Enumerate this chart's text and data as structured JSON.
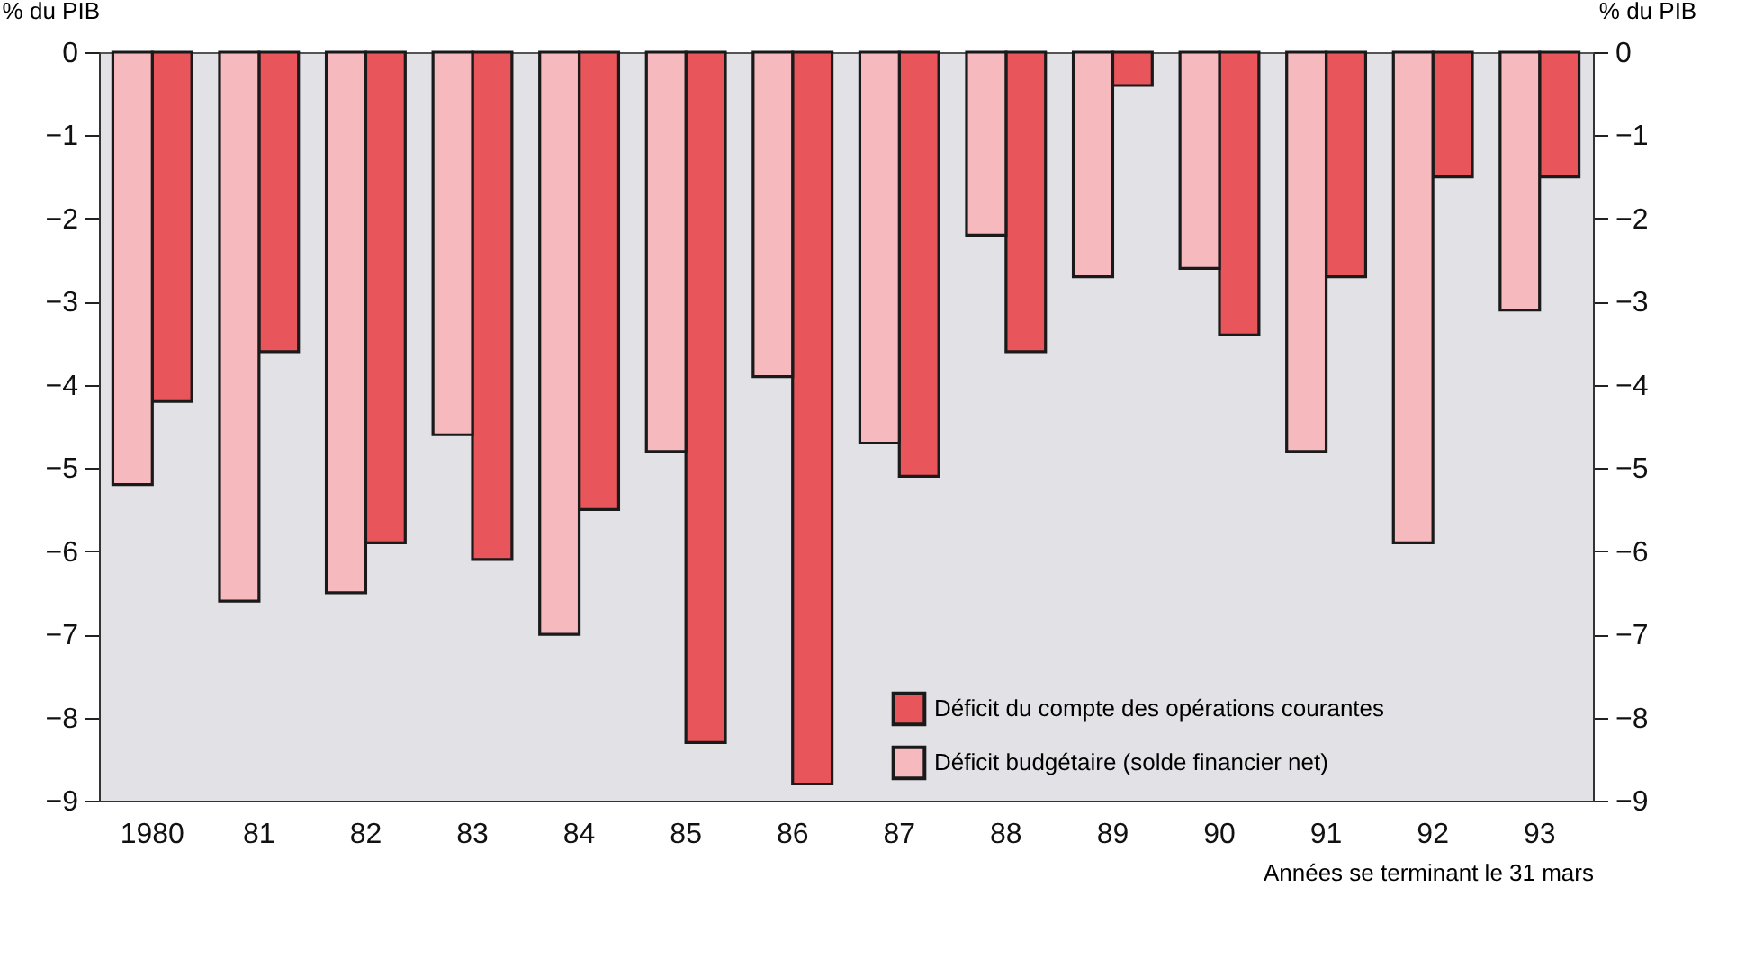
{
  "chart_data": {
    "type": "bar",
    "xlabel": "Années se terminant le 31 mars",
    "ylabel": "% du PIB",
    "y2label": "% du PIB",
    "categories": [
      "1980",
      "81",
      "82",
      "83",
      "84",
      "85",
      "86",
      "87",
      "88",
      "89",
      "90",
      "91",
      "92",
      "93"
    ],
    "series": [
      {
        "name": "Déficit du compte des opérations courantes",
        "color": "#e8555a",
        "values": [
          -4.2,
          -3.6,
          -5.9,
          -6.1,
          -5.5,
          -8.3,
          -8.8,
          -5.1,
          -3.6,
          -0.4,
          -3.4,
          -2.7,
          -1.5,
          -1.5
        ]
      },
      {
        "name": "Déficit budgétaire (solde financier net)",
        "color": "#f6b9bd",
        "values": [
          -5.2,
          -6.6,
          -6.5,
          -4.6,
          -7.0,
          -4.8,
          -3.9,
          -4.7,
          -2.2,
          -2.7,
          -2.6,
          -4.8,
          -5.9,
          -3.1
        ]
      }
    ],
    "ylim": [
      -9,
      0
    ],
    "yticks": [
      -9,
      -8,
      -7,
      -6,
      -5,
      -4,
      -3,
      -2,
      -1,
      0
    ],
    "y2lim": [
      -9,
      0
    ],
    "y2ticks": [
      -9,
      -8,
      -7,
      -6,
      -5,
      -4,
      -3,
      -2,
      -1,
      0
    ],
    "grid": false,
    "legend": "bottom right"
  }
}
